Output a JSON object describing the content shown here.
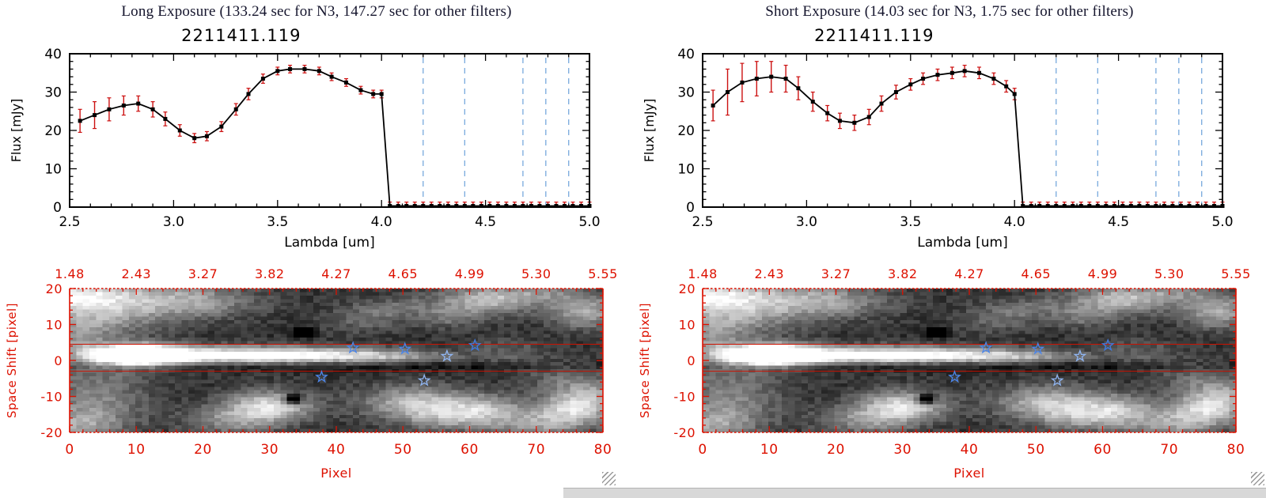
{
  "panels": [
    {
      "title": "Long Exposure (133.24 sec for N3, 147.27 sec for other filters)",
      "spectrum_chart": 0,
      "image_chart": 2
    },
    {
      "title": "Short Exposure (14.03 sec for N3, 1.75 sec for other filters)",
      "spectrum_chart": 1,
      "image_chart": 2
    }
  ],
  "chart_data": [
    {
      "type": "line",
      "panel": "Long Exposure",
      "title": "2211411.119",
      "xlabel": "Lambda [um]",
      "ylabel": "Flux [mJy]",
      "xlim": [
        2.5,
        5.0
      ],
      "ylim": [
        0,
        40
      ],
      "x_tick_values": [
        2.5,
        3.0,
        3.5,
        4.0,
        4.5,
        5.0
      ],
      "x_tick_labels": [
        "2.5",
        "3.0",
        "3.5",
        "4.0",
        "4.5",
        "5.0"
      ],
      "y_tick_values": [
        0,
        10,
        20,
        30,
        40
      ],
      "y_tick_labels": [
        "0",
        "10",
        "20",
        "30",
        "40"
      ],
      "marker": "filled-square",
      "dashed_x": [
        4.2,
        4.4,
        4.68,
        4.79,
        4.9
      ],
      "colors": {
        "line": "#000000",
        "error": "#cc1111",
        "dashed": "#77a9dd"
      },
      "x": [
        2.55,
        2.62,
        2.69,
        2.76,
        2.83,
        2.9,
        2.96,
        3.03,
        3.1,
        3.16,
        3.23,
        3.3,
        3.36,
        3.43,
        3.5,
        3.56,
        3.63,
        3.7,
        3.76,
        3.83,
        3.9,
        3.96,
        4.0,
        4.04,
        4.08,
        4.12,
        4.16,
        4.2,
        4.24,
        4.28,
        4.32,
        4.36,
        4.4,
        4.44,
        4.48,
        4.52,
        4.56,
        4.6,
        4.64,
        4.68,
        4.72,
        4.76,
        4.8,
        4.84,
        4.88,
        4.92,
        4.96,
        5.0
      ],
      "y": [
        22.5,
        24,
        25.5,
        26.5,
        27,
        25.5,
        23,
        20,
        18,
        18.5,
        21,
        25.5,
        29.5,
        33.5,
        35.5,
        36,
        36,
        35.5,
        34,
        32.5,
        30.5,
        29.5,
        29.5,
        0.3,
        0.3,
        0.3,
        0.3,
        0.3,
        0.3,
        0.3,
        0.3,
        0.3,
        0.3,
        0.3,
        0.3,
        0.3,
        0.3,
        0.3,
        0.3,
        0.3,
        0.3,
        0.3,
        0.3,
        0.3,
        0.3,
        0.3,
        0.3,
        0.3
      ],
      "yerr": [
        3,
        3.5,
        3,
        2.5,
        2,
        2,
        1.8,
        1.5,
        1.2,
        1.2,
        1.3,
        1.5,
        1.5,
        1.2,
        1,
        1,
        1,
        1,
        1,
        1,
        1,
        1,
        1,
        1,
        1,
        1,
        1,
        1,
        1,
        1,
        1,
        1,
        1,
        1,
        1,
        1,
        1,
        1,
        1,
        1,
        1,
        1,
        1,
        1,
        1,
        1,
        1,
        1
      ]
    },
    {
      "type": "line",
      "panel": "Short Exposure",
      "title": "2211411.119",
      "xlabel": "Lambda [um]",
      "ylabel": "Flux [mJy]",
      "xlim": [
        2.5,
        5.0
      ],
      "ylim": [
        0,
        40
      ],
      "x_tick_values": [
        2.5,
        3.0,
        3.5,
        4.0,
        4.5,
        5.0
      ],
      "x_tick_labels": [
        "2.5",
        "3.0",
        "3.5",
        "4.0",
        "4.5",
        "5.0"
      ],
      "y_tick_values": [
        0,
        10,
        20,
        30,
        40
      ],
      "y_tick_labels": [
        "0",
        "10",
        "20",
        "30",
        "40"
      ],
      "marker": "filled-square",
      "dashed_x": [
        4.2,
        4.4,
        4.68,
        4.79,
        4.9
      ],
      "colors": {
        "line": "#000000",
        "error": "#cc1111",
        "dashed": "#77a9dd"
      },
      "x": [
        2.55,
        2.62,
        2.69,
        2.76,
        2.83,
        2.9,
        2.96,
        3.03,
        3.1,
        3.16,
        3.23,
        3.3,
        3.36,
        3.43,
        3.5,
        3.56,
        3.63,
        3.7,
        3.76,
        3.83,
        3.9,
        3.96,
        4.0,
        4.04,
        4.08,
        4.12,
        4.16,
        4.2,
        4.24,
        4.28,
        4.32,
        4.36,
        4.4,
        4.44,
        4.48,
        4.52,
        4.56,
        4.6,
        4.64,
        4.68,
        4.72,
        4.76,
        4.8,
        4.84,
        4.88,
        4.92,
        4.96,
        5.0
      ],
      "y": [
        26.5,
        30,
        32.5,
        33.5,
        34,
        33.5,
        31,
        27.5,
        24.5,
        22.5,
        22,
        23.5,
        27,
        30,
        32,
        33.5,
        34.5,
        35,
        35.5,
        35,
        33.5,
        31.5,
        29.5,
        0.3,
        0.3,
        0.3,
        0.3,
        0.3,
        0.3,
        0.3,
        0.3,
        0.3,
        0.3,
        0.3,
        0.3,
        0.3,
        0.3,
        0.3,
        0.3,
        0.3,
        0.3,
        0.3,
        0.3,
        0.3,
        0.3,
        0.3,
        0.3,
        0.3
      ],
      "yerr": [
        4,
        6,
        5,
        4.5,
        4,
        3.5,
        3,
        2.5,
        2,
        2,
        2,
        2,
        2,
        1.8,
        1.5,
        1.5,
        1.5,
        1.5,
        1.5,
        1.5,
        1.5,
        1.5,
        1.5,
        1,
        1,
        1,
        1,
        1,
        1,
        1,
        1,
        1,
        1,
        1,
        1,
        1,
        1,
        1,
        1,
        1,
        1,
        1,
        1,
        1,
        1,
        1,
        1,
        1
      ]
    },
    {
      "type": "heatmap",
      "panel": "both",
      "title": "",
      "xlabel": "Pixel",
      "ylabel": "Space Shift [pixel]",
      "xlim": [
        0,
        80
      ],
      "ylim": [
        -20,
        20
      ],
      "x_tick_labels": [
        "0",
        "10",
        "20",
        "30",
        "40",
        "50",
        "60",
        "70",
        "80"
      ],
      "y_tick_labels": [
        "20",
        "10",
        "0",
        "-10",
        "-20"
      ],
      "top_axis_labels": [
        "1.48",
        "2.43",
        "3.27",
        "3.82",
        "4.27",
        "4.65",
        "4.99",
        "5.30",
        "5.55"
      ],
      "axis_color": "#dd1100",
      "aperture_lines_y": [
        4.5,
        -3.0
      ],
      "stars": [
        {
          "x": 42.5,
          "y": 3.5,
          "c": "#4d86e8"
        },
        {
          "x": 50.3,
          "y": 3.2,
          "c": "#4d86e8"
        },
        {
          "x": 56.6,
          "y": 1.2,
          "c": "#8fb4f0"
        },
        {
          "x": 60.8,
          "y": 4.2,
          "c": "#3f7ae0"
        },
        {
          "x": 37.8,
          "y": -4.6,
          "c": "#4d86e8"
        },
        {
          "x": 53.2,
          "y": -5.6,
          "c": "#8fb4f0"
        }
      ],
      "description": "grayscale 2D spectral image; bright horizontal trace near space shift 0-4 from pixel 2 to 47, brightest blob around pixel 8-14, diffuse emission patches top-left, bottom-center and right edges",
      "noise": {
        "base": 0.1,
        "amplitude": 0.16
      },
      "blobs": [
        [
          10,
          1.5,
          4.5,
          2.0,
          1.6
        ],
        [
          22,
          1.5,
          10,
          1.7,
          0.75
        ],
        [
          36,
          1.5,
          9,
          1.6,
          0.5
        ],
        [
          46,
          1.2,
          6,
          1.4,
          0.3
        ],
        [
          56,
          1.0,
          7,
          1.2,
          0.12
        ],
        [
          3,
          13,
          7,
          5,
          0.4
        ],
        [
          12,
          18,
          9,
          4,
          0.38
        ],
        [
          0,
          19,
          5,
          3,
          0.45
        ],
        [
          20,
          16,
          6,
          3,
          0.2
        ],
        [
          1,
          4,
          3,
          4,
          0.3
        ],
        [
          4,
          -6,
          6,
          4,
          0.22
        ],
        [
          3,
          -14,
          6,
          4,
          0.3
        ],
        [
          0,
          -19,
          5,
          3,
          0.35
        ],
        [
          30,
          -13,
          4.5,
          3.2,
          0.65
        ],
        [
          24,
          -17,
          5,
          3,
          0.35
        ],
        [
          52,
          -12,
          6,
          3.5,
          0.5
        ],
        [
          57,
          -16,
          5,
          3,
          0.35
        ],
        [
          63,
          -14,
          4,
          3,
          0.4
        ],
        [
          78,
          -11,
          4,
          4,
          0.55
        ],
        [
          74,
          -15,
          4,
          3,
          0.4
        ],
        [
          70,
          -19,
          5,
          2.5,
          0.3
        ],
        [
          62,
          17,
          5,
          3,
          0.5
        ],
        [
          70,
          19,
          5,
          2.5,
          0.3
        ],
        [
          78,
          14,
          4,
          3.5,
          0.45
        ],
        [
          57,
          12,
          3,
          2,
          0.2
        ],
        [
          44,
          12,
          4,
          3,
          0.2
        ],
        [
          50,
          15,
          4,
          2.5,
          0.2
        ],
        [
          66,
          3,
          4,
          2.5,
          0.15
        ],
        [
          73,
          -4,
          4,
          3,
          0.15
        ],
        [
          38,
          -1.8,
          35,
          0.9,
          -0.15
        ],
        [
          33.5,
          -11,
          0.9,
          0.9,
          -0.9
        ],
        [
          35,
          8,
          0.9,
          0.9,
          -0.8
        ]
      ]
    }
  ],
  "decor": {
    "bottom_strip_color": "#d8d8d8"
  }
}
